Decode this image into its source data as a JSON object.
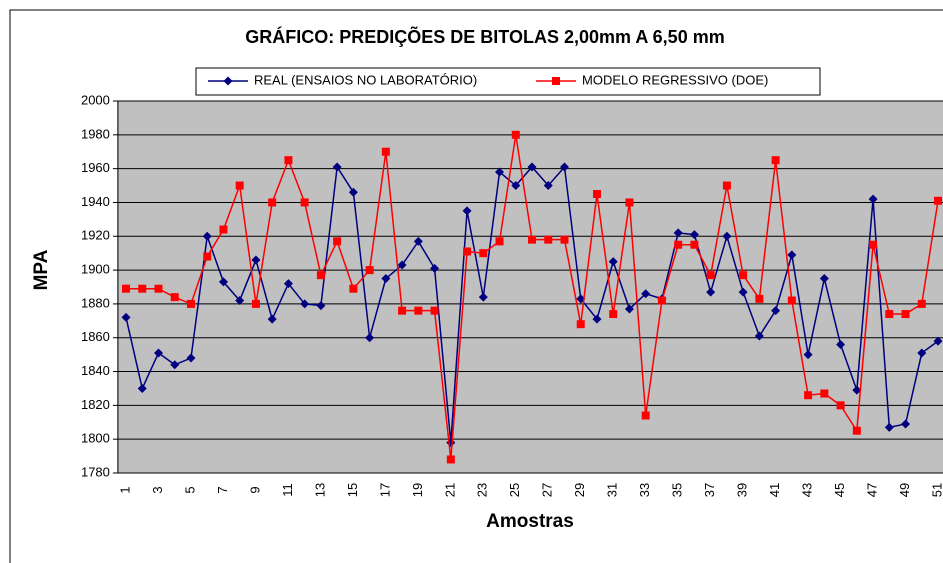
{
  "chart_data": {
    "type": "line",
    "title": "GRÁFICO: PREDIÇÕES DE  BITOLAS 2,00mm A 6,50 mm",
    "x_label": "Amostras",
    "y_label": "MPA",
    "categories": [
      1,
      null,
      3,
      null,
      5,
      null,
      7,
      null,
      9,
      null,
      11,
      null,
      13,
      null,
      15,
      null,
      17,
      null,
      19,
      null,
      21,
      null,
      23,
      null,
      25,
      null,
      27,
      null,
      29,
      null,
      31,
      null,
      33,
      null,
      35,
      null,
      37,
      null,
      39,
      null,
      41,
      null,
      43,
      null,
      45,
      null,
      47,
      null,
      49,
      null,
      51
    ],
    "series": [
      {
        "name": "REAL (ENSAIOS NO LABORATÓRIO)",
        "color": "#000080",
        "marker": "diamond",
        "values": [
          1872,
          1830,
          1851,
          1844,
          1848,
          1920,
          1893,
          1882,
          1906,
          1871,
          1892,
          1880,
          1879,
          1961,
          1946,
          1860,
          1895,
          1903,
          1917,
          1901,
          1798,
          1935,
          1884,
          1958,
          1950,
          1961,
          1950,
          1961,
          1883,
          1871,
          1905,
          1877,
          1886,
          1883,
          1922,
          1921,
          1887,
          1920,
          1887,
          1861,
          1876,
          1909,
          1850,
          1895,
          1856,
          1829,
          1942,
          1807,
          1809,
          1851,
          1858
        ]
      },
      {
        "name": "MODELO REGRESSIVO (DOE)",
        "color": "#ff0000",
        "marker": "square",
        "values": [
          1889,
          1889,
          1889,
          1884,
          1880,
          1908,
          1924,
          1950,
          1880,
          1940,
          1965,
          1940,
          1897,
          1917,
          1889,
          1900,
          1970,
          1876,
          1876,
          1876,
          1788,
          1911,
          1910,
          1917,
          1980,
          1918,
          1918,
          1918,
          1868,
          1945,
          1874,
          1940,
          1814,
          1882,
          1915,
          1915,
          1897,
          1950,
          1897,
          1883,
          1965,
          1882,
          1826,
          1827,
          1820,
          1805,
          1915,
          1874,
          1874,
          1880,
          1941
        ]
      }
    ],
    "ylim": [
      1780,
      2000
    ],
    "yticks": [
      1780,
      1800,
      1820,
      1840,
      1860,
      1880,
      1900,
      1920,
      1940,
      1960,
      1980,
      2000
    ],
    "grid": true,
    "legend": "top",
    "plot_background": "#c0c0c0"
  }
}
